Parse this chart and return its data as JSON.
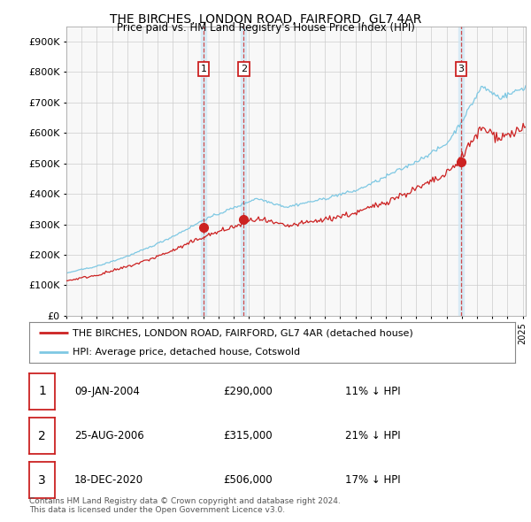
{
  "title": "THE BIRCHES, LONDON ROAD, FAIRFORD, GL7 4AR",
  "subtitle": "Price paid vs. HM Land Registry's House Price Index (HPI)",
  "ytick_values": [
    0,
    100000,
    200000,
    300000,
    400000,
    500000,
    600000,
    700000,
    800000,
    900000
  ],
  "ylim": [
    0,
    950000
  ],
  "xlim_start": 1995.0,
  "xlim_end": 2025.2,
  "hpi_color": "#7ec8e3",
  "price_color": "#cc2222",
  "sale_dates": [
    2004.03,
    2006.65,
    2020.96
  ],
  "sale_prices": [
    290000,
    315000,
    506000
  ],
  "sale_labels": [
    "1",
    "2",
    "3"
  ],
  "vline_color": "#cc2222",
  "vline_shade_color": "#d0e8f5",
  "legend_line1": "THE BIRCHES, LONDON ROAD, FAIRFORD, GL7 4AR (detached house)",
  "legend_line2": "HPI: Average price, detached house, Cotswold",
  "table_data": [
    [
      "1",
      "09-JAN-2004",
      "£290,000",
      "11% ↓ HPI"
    ],
    [
      "2",
      "25-AUG-2006",
      "£315,000",
      "21% ↓ HPI"
    ],
    [
      "3",
      "18-DEC-2020",
      "£506,000",
      "17% ↓ HPI"
    ]
  ],
  "footer": "Contains HM Land Registry data © Crown copyright and database right 2024.\nThis data is licensed under the Open Government Licence v3.0.",
  "background_color": "#ffffff",
  "grid_color": "#cccccc"
}
